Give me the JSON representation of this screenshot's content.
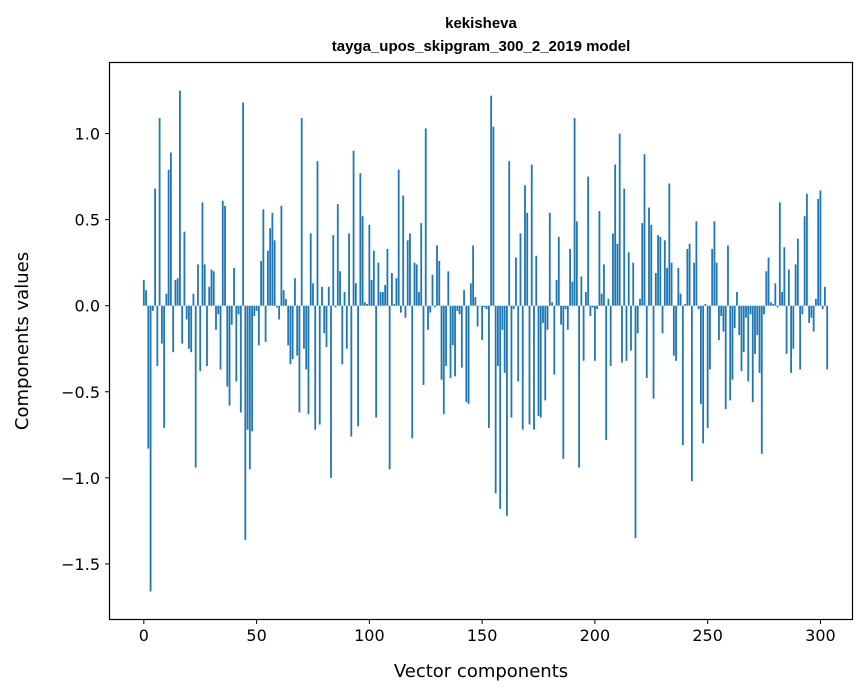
{
  "chart_data": {
    "type": "bar",
    "title": "kekisheva",
    "subtitle": "tayga_upos_skipgram_300_2_2019 model",
    "xlabel": "Vector components",
    "ylabel": "Components values",
    "xlim": [
      -15,
      314
    ],
    "ylim": [
      -1.82,
      1.41
    ],
    "x_ticks": [
      0,
      50,
      100,
      150,
      200,
      250,
      300
    ],
    "x_tick_labels": [
      "0",
      "50",
      "100",
      "150",
      "200",
      "250",
      "300"
    ],
    "y_ticks": [
      -1.5,
      -1.0,
      -0.5,
      0.0,
      0.5,
      1.0
    ],
    "y_tick_labels": [
      "−1.5",
      "−1.0",
      "−0.5",
      "0.0",
      "0.5",
      "1.0"
    ],
    "bar_color": "#1f77b4",
    "grid": false,
    "legend": "none",
    "values": [
      0.15,
      0.09,
      -0.83,
      -1.66,
      -0.03,
      0.68,
      -0.35,
      1.09,
      -0.22,
      -0.71,
      0.07,
      0.79,
      0.89,
      -0.27,
      0.15,
      0.16,
      1.25,
      -0.22,
      0.43,
      -0.08,
      -0.25,
      -0.27,
      0.07,
      -0.94,
      0.24,
      -0.38,
      0.6,
      0.24,
      -0.35,
      0.11,
      0.21,
      0.2,
      -0.14,
      -0.05,
      -0.37,
      0.61,
      0.58,
      -0.47,
      -0.58,
      -0.11,
      0.22,
      -0.44,
      -0.05,
      -0.62,
      1.18,
      -1.36,
      -0.72,
      -0.95,
      -0.73,
      -0.06,
      -0.03,
      -0.23,
      0.26,
      0.56,
      -0.21,
      0.32,
      0.45,
      0.54,
      0.38,
      -0.01,
      -0.08,
      0.58,
      0.09,
      0.04,
      -0.23,
      -0.34,
      -0.31,
      0.16,
      -0.29,
      -0.62,
      1.09,
      -0.25,
      -0.37,
      -0.63,
      0.42,
      0.13,
      -0.72,
      0.84,
      -0.69,
      0.11,
      -0.16,
      -0.24,
      0.11,
      -1.0,
      0.41,
      -0.01,
      0.59,
      0.2,
      -0.34,
      0.08,
      -0.25,
      0.42,
      -0.76,
      0.9,
      0.13,
      -0.7,
      0.77,
      0.52,
      0.02,
      0.01,
      0.47,
      0.15,
      0.32,
      -0.65,
      0.25,
      0.08,
      0.08,
      0.12,
      0.33,
      -0.95,
      0.19,
      0.01,
      0.16,
      0.79,
      -0.04,
      0.64,
      -0.07,
      0.38,
      0.42,
      -0.77,
      0.25,
      0.24,
      0.08,
      0.48,
      -0.46,
      1.03,
      -0.14,
      -0.04,
      0.18,
      -0.01,
      0.35,
      0.26,
      -0.43,
      -0.63,
      -0.35,
      0.2,
      -0.42,
      -0.23,
      -0.41,
      -0.03,
      -0.05,
      -0.36,
      0.09,
      -0.56,
      -0.57,
      0.13,
      0.35,
      0.05,
      -0.12,
      0.0,
      -0.2,
      -0.01,
      -0.02,
      -0.71,
      1.22,
      1.04,
      -1.09,
      -0.35,
      -1.18,
      -0.14,
      -0.39,
      -1.22,
      0.84,
      -0.65,
      -0.02,
      0.28,
      -0.44,
      0.42,
      -0.72,
      0.7,
      0.54,
      -0.69,
      0.82,
      -0.72,
      0.29,
      -0.64,
      -0.65,
      -0.1,
      -0.55,
      -0.14,
      0.54,
      0.02,
      -0.4,
      0.15,
      0.4,
      -0.11,
      -0.89,
      -0.02,
      -0.14,
      0.33,
      0.14,
      1.09,
      0.49,
      -0.94,
      0.17,
      -0.32,
      0.08,
      0.75,
      -0.06,
      -0.01,
      -0.32,
      -0.02,
      0.55,
      0.07,
      0.24,
      -0.78,
      0.04,
      -0.35,
      0.42,
      0.82,
      0.36,
      1.0,
      -0.33,
      0.68,
      -0.32,
      0.31,
      -0.26,
      0.25,
      -1.35,
      -0.16,
      0.04,
      0.48,
      0.88,
      -0.42,
      0.57,
      0.47,
      -0.54,
      0.19,
      0.41,
      0.4,
      -0.16,
      0.38,
      0.22,
      0.71,
      0.25,
      -0.29,
      -0.32,
      0.22,
      0.07,
      -0.81,
      0.01,
      0.33,
      0.36,
      -1.02,
      0.25,
      0.49,
      -0.02,
      -0.57,
      -0.8,
      0.01,
      -0.71,
      -0.37,
      0.33,
      0.49,
      0.25,
      -0.2,
      -0.06,
      -0.15,
      -0.6,
      0.35,
      -0.55,
      -0.43,
      -0.13,
      0.08,
      -0.17,
      -0.38,
      -0.27,
      -0.07,
      -0.44,
      -0.05,
      -0.56,
      -0.28,
      -0.17,
      -0.39,
      -0.86,
      -0.05,
      0.2,
      0.28,
      0.02,
      0.01,
      0.13,
      -0.01,
      0.6,
      0.08,
      0.34,
      -0.28,
      0.21,
      -0.39,
      -0.25,
      0.24,
      0.39,
      -0.37,
      -0.05,
      0.52,
      0.65,
      -0.1,
      -0.07,
      -0.15,
      0.04,
      0.62,
      0.67,
      -0.02,
      0.11,
      -0.37
    ],
    "notes": "Bars at x = index of each value."
  }
}
